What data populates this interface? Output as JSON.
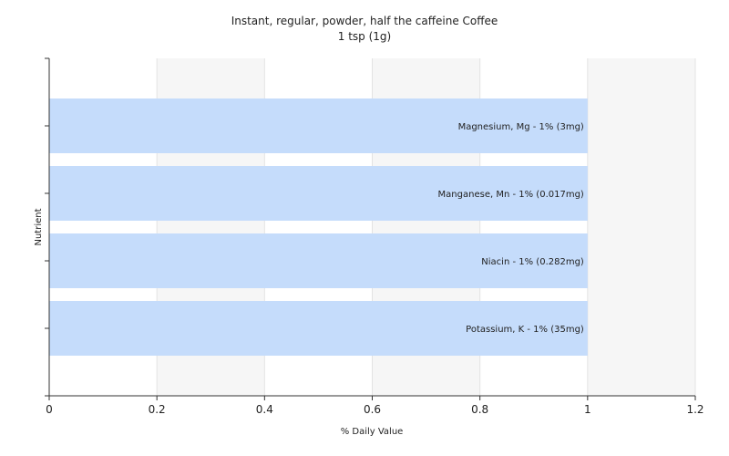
{
  "chart_data": {
    "type": "bar",
    "orientation": "horizontal",
    "title": "Instant, regular, powder, half the caffeine Coffee",
    "subtitle": "1 tsp (1g)",
    "xlabel": "% Daily Value",
    "ylabel": "Nutrient",
    "xlim": [
      0,
      1.2
    ],
    "xticks": [
      "0",
      "0.2",
      "0.4",
      "0.6",
      "0.8",
      "1",
      "1.2"
    ],
    "categories": [
      "Magnesium, Mg",
      "Manganese, Mn",
      "Niacin",
      "Potassium, K"
    ],
    "values": [
      1,
      1,
      1,
      1
    ],
    "data_labels": [
      "Magnesium, Mg - 1% (3mg)",
      "Manganese, Mn - 1% (0.017mg)",
      "Niacin - 1% (0.282mg)",
      "Potassium, K - 1% (35mg)"
    ],
    "grid": true,
    "bar_color": "#c5dcfb",
    "plot_background": "#f6f6f6",
    "band_color": "#ffffff"
  }
}
